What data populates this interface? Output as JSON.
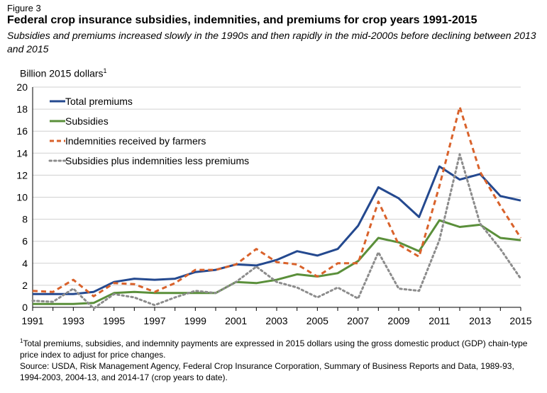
{
  "figure": {
    "label": "Figure 3",
    "title": "Federal crop insurance subsidies, indemnities, and premiums for crop years 1991-2015",
    "subtitle": "Subsidies and premiums increased slowly in the 1990s and then rapidly in the mid-2000s before declining between 2013 and 2015"
  },
  "chart_data": {
    "type": "line",
    "title": "Federal crop insurance subsidies, indemnities, and premiums for crop years 1991-2015",
    "ylabel": "Billion 2015 dollars",
    "ylabel_sup": "1",
    "xlabel": "",
    "ylim": [
      0,
      20
    ],
    "yticks": [
      0,
      2,
      4,
      6,
      8,
      10,
      12,
      14,
      16,
      18,
      20
    ],
    "xticks": [
      1991,
      1993,
      1995,
      1997,
      1999,
      2001,
      2003,
      2005,
      2007,
      2009,
      2011,
      2013,
      2015
    ],
    "grid": true,
    "legend_position": "top-left",
    "x": [
      1991,
      1992,
      1993,
      1994,
      1995,
      1996,
      1997,
      1998,
      1999,
      2000,
      2001,
      2002,
      2003,
      2004,
      2005,
      2006,
      2007,
      2008,
      2009,
      2010,
      2011,
      2012,
      2013,
      2014,
      2015
    ],
    "series": [
      {
        "name": "Total premiums",
        "color": "#24498f",
        "style": "solid",
        "values": [
          1.2,
          1.2,
          1.2,
          1.4,
          2.3,
          2.6,
          2.5,
          2.6,
          3.2,
          3.4,
          3.9,
          3.8,
          4.3,
          5.1,
          4.7,
          5.3,
          7.4,
          10.9,
          9.9,
          8.2,
          12.8,
          11.6,
          12.1,
          10.1,
          9.7
        ]
      },
      {
        "name": "Subsidies",
        "color": "#5a8f3a",
        "style": "solid",
        "values": [
          0.3,
          0.3,
          0.3,
          0.4,
          1.3,
          1.4,
          1.3,
          1.3,
          1.3,
          1.3,
          2.3,
          2.2,
          2.5,
          3.0,
          2.8,
          3.1,
          4.2,
          6.3,
          5.9,
          5.1,
          7.9,
          7.3,
          7.5,
          6.3,
          6.1
        ]
      },
      {
        "name": "Indemnities received by farmers",
        "color": "#d9622b",
        "style": "dashed",
        "values": [
          1.5,
          1.4,
          2.5,
          1.0,
          2.2,
          2.1,
          1.4,
          2.2,
          3.4,
          3.4,
          3.9,
          5.3,
          4.1,
          3.9,
          2.8,
          4.0,
          4.0,
          9.6,
          5.7,
          4.6,
          11.0,
          18.2,
          12.3,
          9.2,
          6.3
        ]
      },
      {
        "name": "Subsidies plus indemnities less premiums",
        "color": "#8c8c8c",
        "style": "dotted",
        "values": [
          0.6,
          0.5,
          1.7,
          -0.1,
          1.2,
          0.9,
          0.2,
          0.9,
          1.5,
          1.3,
          2.3,
          3.7,
          2.3,
          1.8,
          0.9,
          1.8,
          0.8,
          5.0,
          1.7,
          1.5,
          6.1,
          13.9,
          7.6,
          5.3,
          2.6
        ]
      }
    ]
  },
  "notes": {
    "footnote_sup": "1",
    "footnote": "Total premiums, subsidies, and indemnity payments are expressed in 2015 dollars using the gross domestic product (GDP) chain-type price index to adjust for price changes.",
    "source": "Source: USDA, Risk Management Agency, Federal Crop Insurance Corporation, Summary of Business Reports and Data, 1989-93, 1994-2003, 2004-13, and 2014-17 (crop years to date)."
  }
}
